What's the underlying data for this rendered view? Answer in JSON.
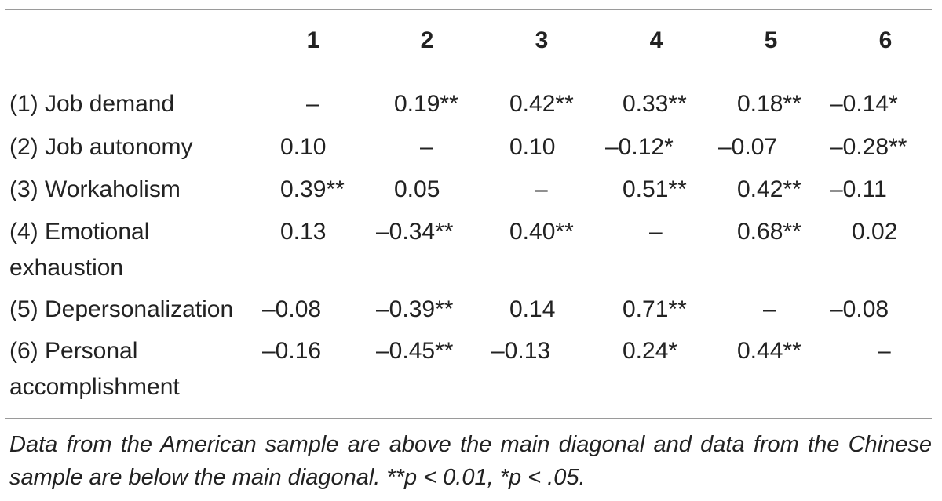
{
  "table": {
    "column_headers": [
      "1",
      "2",
      "3",
      "4",
      "5",
      "6"
    ],
    "rows": [
      {
        "label_line1": "(1) Job demand",
        "label_line2": "",
        "cells": [
          "–",
          "0.19**",
          "0.42**",
          "0.33**",
          "0.18**",
          "–0.14*"
        ]
      },
      {
        "label_line1": "(2) Job autonomy",
        "label_line2": "",
        "cells": [
          "0.10",
          "–",
          "0.10",
          "–0.12*",
          "–0.07",
          "–0.28**"
        ]
      },
      {
        "label_line1": "(3) Workaholism",
        "label_line2": "",
        "cells": [
          "0.39**",
          "0.05",
          "–",
          "0.51**",
          "0.42**",
          "–0.11"
        ]
      },
      {
        "label_line1": "(4) Emotional",
        "label_line2": "exhaustion",
        "cells": [
          "0.13",
          "–0.34**",
          "0.40**",
          "–",
          "0.68**",
          "0.02"
        ]
      },
      {
        "label_line1": "(5) Depersonalization",
        "label_line2": "",
        "cells": [
          "–0.08",
          "–0.39**",
          "0.14",
          "0.71**",
          "–",
          "–0.08"
        ]
      },
      {
        "label_line1": "(6) Personal",
        "label_line2": "accomplishment",
        "cells": [
          "–0.16",
          "–0.45**",
          "–0.13",
          "0.24*",
          "0.44**",
          "–"
        ]
      }
    ],
    "note": "Data from the American sample are above the main diagonal and data from the Chinese sample are below the main diagonal. **p < 0.01, *p < .05."
  }
}
